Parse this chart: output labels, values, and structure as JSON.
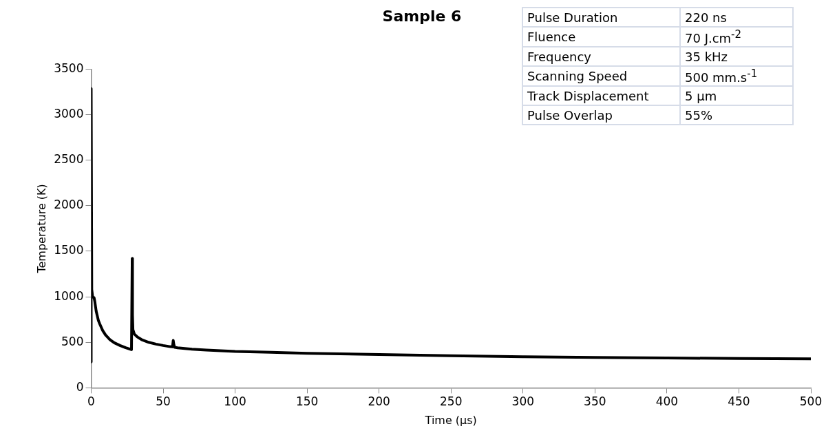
{
  "chart_data": {
    "type": "line",
    "title": "Sample 6",
    "xlabel": "Time (µs)",
    "ylabel": "Temperature (K)",
    "annotations": [
      "Pulse Duration",
      "220 ns",
      "Fluence",
      "70 J.cm$^{-2}$",
      "Frequency",
      "35 kHz",
      "Scanning Speed",
      "500 mm.s$^{-1}$",
      "Track Displacement",
      "5 µm",
      "Pulse Overlap",
      "55%"
    ],
    "series": [
      {
        "color": "#000000",
        "x": [
          0,
          0,
          0.4,
          1,
          2,
          2.5,
          3.5,
          5,
          6,
          8,
          10,
          13,
          16,
          20,
          24,
          28,
          28.3,
          28.5,
          28.7,
          29,
          30,
          32,
          35,
          40,
          45,
          50,
          55,
          56.5,
          57,
          57.5,
          58,
          60,
          70,
          80,
          100,
          125,
          150,
          200,
          250,
          300,
          350,
          400,
          450,
          500
        ],
        "values": [
          285,
          3285,
          1080,
          1000,
          990,
          950,
          840,
          740,
          700,
          630,
          580,
          530,
          495,
          465,
          440,
          420,
          420,
          1420,
          800,
          640,
          590,
          560,
          530,
          500,
          480,
          465,
          452,
          450,
          520,
          470,
          445,
          440,
          425,
          415,
          400,
          390,
          380,
          365,
          352,
          342,
          334,
          328,
          322,
          318
        ]
      }
    ],
    "xlim": [
      0,
      500
    ],
    "xticks": [
      0,
      50,
      100,
      150,
      200,
      250,
      300,
      350,
      400,
      450,
      500
    ],
    "ylim": [
      0,
      3500
    ],
    "yticks": [
      0,
      500,
      1000,
      1500,
      2000,
      2500,
      3000,
      3500
    ],
    "grid": false,
    "legend": false,
    "marker": "none",
    "line_style": "solid"
  }
}
